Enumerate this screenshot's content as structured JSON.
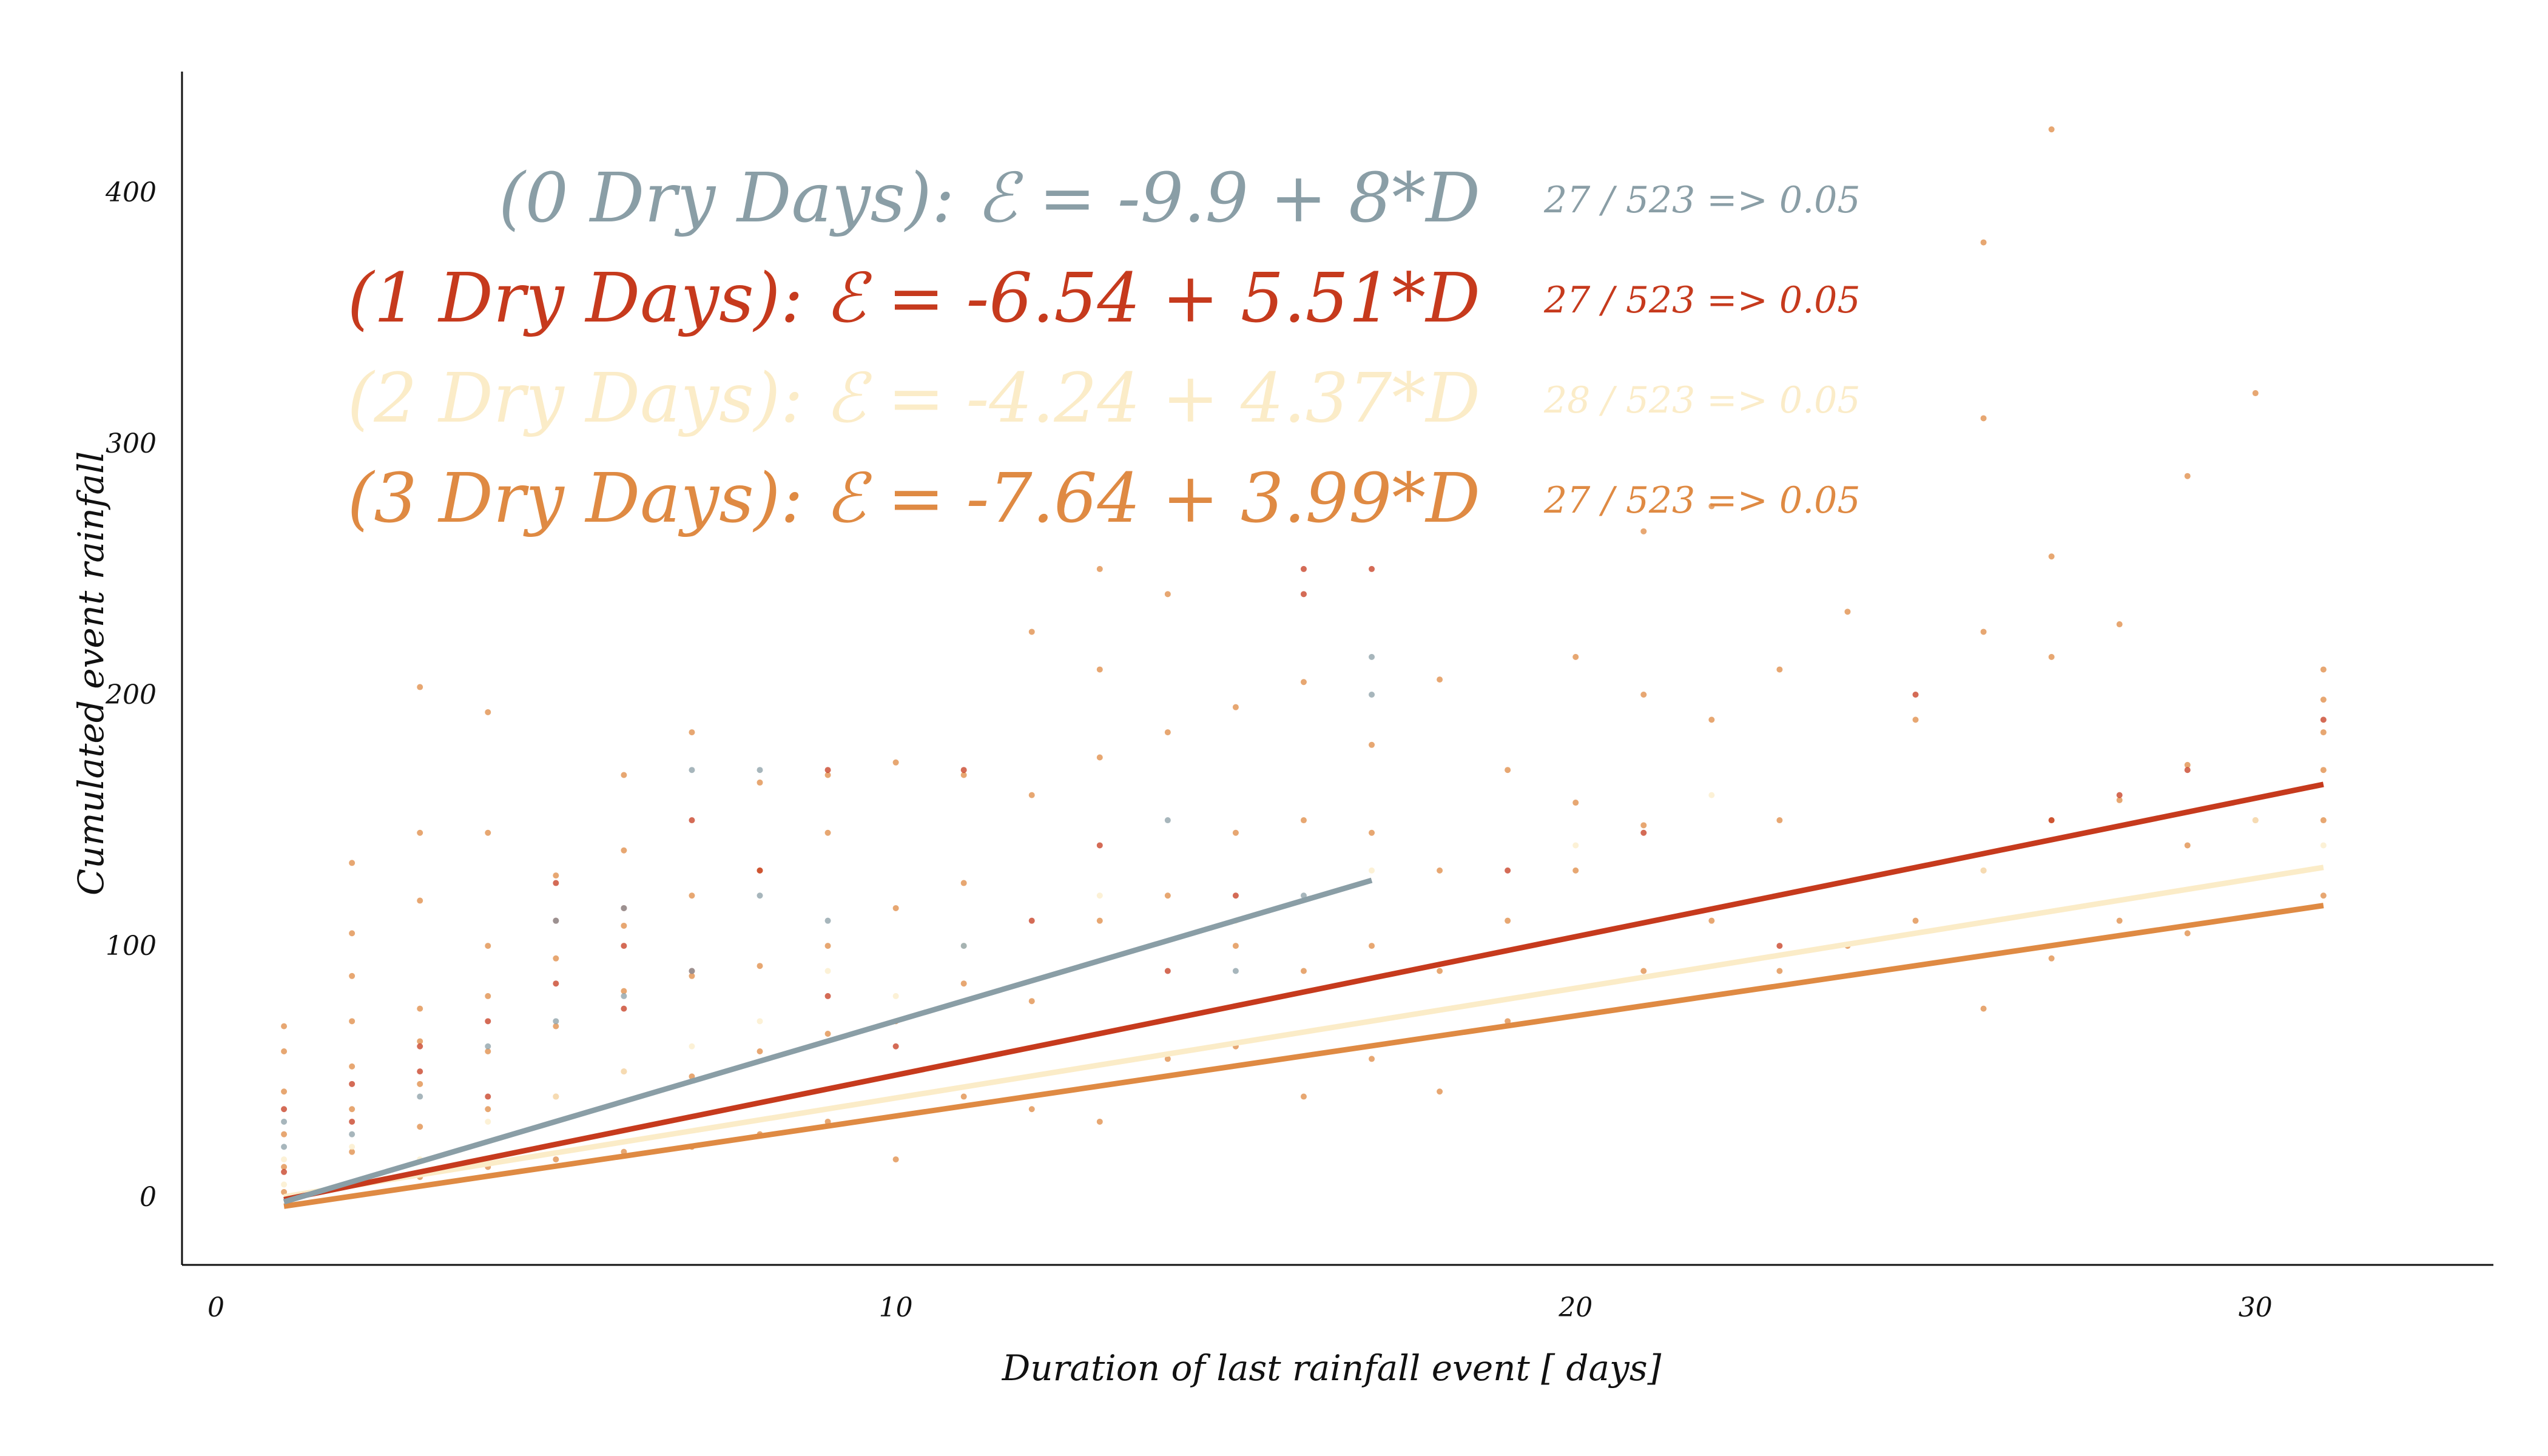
{
  "chart_data": {
    "type": "scatter",
    "title": "",
    "xlabel": "Duration of last rainfall event [ days]",
    "ylabel": "Cumulated event rainfall",
    "xlim": [
      -0.5,
      33.5
    ],
    "ylim": [
      -27,
      448
    ],
    "xticks": [
      0,
      10,
      20,
      30
    ],
    "yticks": [
      0,
      100,
      200,
      300,
      400
    ],
    "grid": false,
    "legend": "top-center",
    "series": [
      {
        "key": "dry0",
        "equation": "(0 Dry Days): ℰ = -9.9 + 8*D",
        "ratio": "27 / 523 => 0.05",
        "color": "#8a9ea6",
        "intercept": -9.9,
        "slope": 8,
        "x_range": [
          1,
          17
        ],
        "points": [
          [
            1,
            20
          ],
          [
            1,
            30
          ],
          [
            2,
            25
          ],
          [
            3,
            40
          ],
          [
            4,
            60
          ],
          [
            5,
            70
          ],
          [
            5,
            110
          ],
          [
            6,
            80
          ],
          [
            6,
            115
          ],
          [
            7,
            90
          ],
          [
            7,
            170
          ],
          [
            8,
            170
          ],
          [
            8,
            120
          ],
          [
            9,
            110
          ],
          [
            11,
            100
          ],
          [
            14,
            150
          ],
          [
            15,
            90
          ],
          [
            16,
            120
          ],
          [
            17,
            215
          ],
          [
            17,
            200
          ]
        ]
      },
      {
        "key": "dry1",
        "equation": "(1 Dry Days): ℰ = -6.54 + 5.51*D",
        "ratio": "27 / 523 => 0.05",
        "color": "#c63a1d",
        "intercept": -6.54,
        "slope": 5.51,
        "x_range": [
          1,
          31
        ],
        "points": [
          [
            1,
            10
          ],
          [
            1,
            35
          ],
          [
            2,
            30
          ],
          [
            2,
            45
          ],
          [
            3,
            50
          ],
          [
            3,
            60
          ],
          [
            4,
            40
          ],
          [
            4,
            70
          ],
          [
            5,
            85
          ],
          [
            5,
            110
          ],
          [
            5,
            125
          ],
          [
            6,
            100
          ],
          [
            6,
            115
          ],
          [
            6,
            75
          ],
          [
            7,
            150
          ],
          [
            7,
            90
          ],
          [
            8,
            130
          ],
          [
            9,
            170
          ],
          [
            9,
            80
          ],
          [
            10,
            60
          ],
          [
            11,
            170
          ],
          [
            12,
            110
          ],
          [
            13,
            140
          ],
          [
            14,
            90
          ],
          [
            15,
            120
          ],
          [
            16,
            250
          ],
          [
            16,
            240
          ],
          [
            17,
            250
          ],
          [
            19,
            130
          ],
          [
            21,
            145
          ],
          [
            23,
            100
          ],
          [
            25,
            200
          ],
          [
            27,
            150
          ],
          [
            28,
            160
          ],
          [
            29,
            170
          ],
          [
            31,
            190
          ]
        ]
      },
      {
        "key": "dry2",
        "equation": "(2 Dry Days): ℰ = -4.24 + 4.37*D",
        "ratio": "28 / 523 => 0.05",
        "color": "#fbecc8",
        "intercept": -4.24,
        "slope": 4.37,
        "x_range": [
          1,
          31
        ],
        "points": [
          [
            1,
            5
          ],
          [
            1,
            15
          ],
          [
            2,
            20
          ],
          [
            3,
            15
          ],
          [
            4,
            30
          ],
          [
            5,
            40
          ],
          [
            6,
            50
          ],
          [
            7,
            60
          ],
          [
            8,
            70
          ],
          [
            9,
            90
          ],
          [
            10,
            80
          ],
          [
            11,
            100
          ],
          [
            13,
            120
          ],
          [
            15,
            110
          ],
          [
            17,
            130
          ],
          [
            20,
            140
          ],
          [
            22,
            160
          ],
          [
            26,
            130
          ],
          [
            30,
            150
          ],
          [
            31,
            140
          ]
        ]
      },
      {
        "key": "dry3",
        "equation": "(3 Dry Days): ℰ = -7.64 + 3.99*D",
        "ratio": "27 / 523 => 0.05",
        "color": "#df8a43",
        "intercept": -7.64,
        "slope": 3.99,
        "x_range": [
          1,
          31
        ],
        "points": [
          [
            1,
            2
          ],
          [
            1,
            12
          ],
          [
            1,
            25
          ],
          [
            1,
            42
          ],
          [
            1,
            58
          ],
          [
            1,
            68
          ],
          [
            2,
            5
          ],
          [
            2,
            18
          ],
          [
            2,
            35
          ],
          [
            2,
            52
          ],
          [
            2,
            70
          ],
          [
            2,
            88
          ],
          [
            2,
            105
          ],
          [
            2,
            133
          ],
          [
            3,
            8
          ],
          [
            3,
            28
          ],
          [
            3,
            45
          ],
          [
            3,
            62
          ],
          [
            3,
            75
          ],
          [
            3,
            118
          ],
          [
            3,
            145
          ],
          [
            3,
            203
          ],
          [
            4,
            12
          ],
          [
            4,
            35
          ],
          [
            4,
            58
          ],
          [
            4,
            80
          ],
          [
            4,
            100
          ],
          [
            4,
            145
          ],
          [
            4,
            193
          ],
          [
            5,
            15
          ],
          [
            5,
            40
          ],
          [
            5,
            68
          ],
          [
            5,
            95
          ],
          [
            5,
            128
          ],
          [
            6,
            18
          ],
          [
            6,
            50
          ],
          [
            6,
            82
          ],
          [
            6,
            108
          ],
          [
            6,
            138
          ],
          [
            6,
            168
          ],
          [
            7,
            20
          ],
          [
            7,
            48
          ],
          [
            7,
            88
          ],
          [
            7,
            120
          ],
          [
            7,
            185
          ],
          [
            8,
            25
          ],
          [
            8,
            58
          ],
          [
            8,
            92
          ],
          [
            8,
            130
          ],
          [
            8,
            165
          ],
          [
            9,
            30
          ],
          [
            9,
            65
          ],
          [
            9,
            100
          ],
          [
            9,
            145
          ],
          [
            9,
            168
          ],
          [
            10,
            15
          ],
          [
            10,
            70
          ],
          [
            10,
            115
          ],
          [
            10,
            173
          ],
          [
            11,
            40
          ],
          [
            11,
            85
          ],
          [
            11,
            125
          ],
          [
            11,
            168
          ],
          [
            12,
            35
          ],
          [
            12,
            78
          ],
          [
            12,
            160
          ],
          [
            12,
            225
          ],
          [
            13,
            30
          ],
          [
            13,
            110
          ],
          [
            13,
            175
          ],
          [
            13,
            210
          ],
          [
            13,
            250
          ],
          [
            14,
            55
          ],
          [
            14,
            120
          ],
          [
            14,
            185
          ],
          [
            14,
            240
          ],
          [
            15,
            60
          ],
          [
            15,
            100
          ],
          [
            15,
            145
          ],
          [
            15,
            195
          ],
          [
            16,
            40
          ],
          [
            16,
            90
          ],
          [
            16,
            150
          ],
          [
            16,
            205
          ],
          [
            17,
            55
          ],
          [
            17,
            100
          ],
          [
            17,
            145
          ],
          [
            17,
            180
          ],
          [
            18,
            42
          ],
          [
            18,
            90
          ],
          [
            18,
            130
          ],
          [
            18,
            206
          ],
          [
            19,
            70
          ],
          [
            19,
            110
          ],
          [
            19,
            170
          ],
          [
            20,
            130
          ],
          [
            20,
            157
          ],
          [
            20,
            215
          ],
          [
            21,
            90
          ],
          [
            21,
            148
          ],
          [
            21,
            200
          ],
          [
            21,
            265
          ],
          [
            22,
            110
          ],
          [
            22,
            190
          ],
          [
            22,
            275
          ],
          [
            23,
            90
          ],
          [
            23,
            150
          ],
          [
            23,
            210
          ],
          [
            24,
            100
          ],
          [
            24,
            233
          ],
          [
            25,
            110
          ],
          [
            25,
            190
          ],
          [
            26,
            75
          ],
          [
            26,
            130
          ],
          [
            26,
            225
          ],
          [
            26,
            310
          ],
          [
            26,
            380
          ],
          [
            27,
            95
          ],
          [
            27,
            150
          ],
          [
            27,
            215
          ],
          [
            27,
            255
          ],
          [
            27,
            425
          ],
          [
            28,
            110
          ],
          [
            28,
            158
          ],
          [
            28,
            228
          ],
          [
            29,
            105
          ],
          [
            29,
            140
          ],
          [
            29,
            172
          ],
          [
            29,
            287
          ],
          [
            30,
            150
          ],
          [
            30,
            320
          ],
          [
            31,
            120
          ],
          [
            31,
            150
          ],
          [
            31,
            170
          ],
          [
            31,
            185
          ],
          [
            31,
            198
          ],
          [
            31,
            210
          ]
        ]
      }
    ]
  }
}
